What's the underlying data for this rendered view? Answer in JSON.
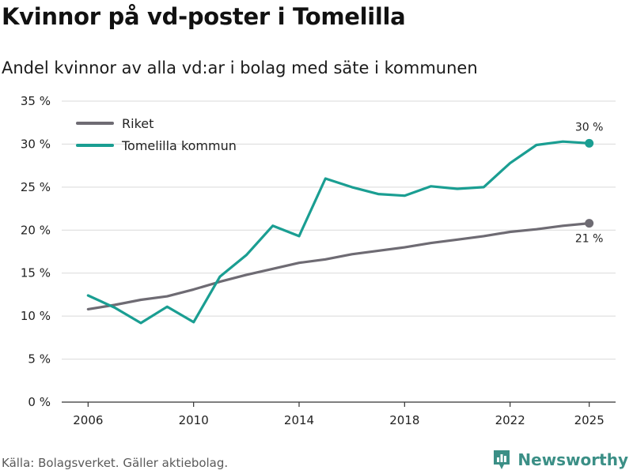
{
  "header": {
    "title": "Kvinnor på vd-poster i Tomelilla",
    "subtitle": "Andel kvinnor av alla vd:ar i bolag med säte i kommunen"
  },
  "footer": {
    "source": "Källa: Bolagsverket. Gäller aktiebolag.",
    "brand": "Newsworthy",
    "brand_icon": "newsworthy-logo-icon"
  },
  "colors": {
    "riket": "#6e6b73",
    "tomelilla": "#1a9e92",
    "grid": "#d9d9d9",
    "axis": "#333333"
  },
  "chart_data": {
    "type": "line",
    "title": "Kvinnor på vd-poster i Tomelilla",
    "subtitle": "Andel kvinnor av alla vd:ar i bolag med säte i kommunen",
    "xlabel": "",
    "ylabel": "",
    "xlim": [
      2005,
      2026
    ],
    "ylim": [
      0,
      35
    ],
    "grid": true,
    "legend_position": "top-left",
    "x_ticks": [
      2006,
      2010,
      2014,
      2018,
      2022,
      2025
    ],
    "y_ticks": [
      0,
      5,
      10,
      15,
      20,
      25,
      30,
      35
    ],
    "y_tick_labels": [
      "0 %",
      "5 %",
      "10 %",
      "15 %",
      "20 %",
      "25 %",
      "30 %",
      "35 %"
    ],
    "x": [
      2006,
      2007,
      2008,
      2009,
      2010,
      2011,
      2012,
      2013,
      2014,
      2015,
      2016,
      2017,
      2018,
      2019,
      2020,
      2021,
      2022,
      2023,
      2024,
      2025
    ],
    "series": [
      {
        "name": "Riket",
        "color_key": "riket",
        "values": [
          10.8,
          11.3,
          11.9,
          12.3,
          13.1,
          14.0,
          14.8,
          15.5,
          16.2,
          16.6,
          17.2,
          17.6,
          18.0,
          18.5,
          18.9,
          19.3,
          19.8,
          20.1,
          20.5,
          20.8
        ],
        "end_label": "21 %"
      },
      {
        "name": "Tomelilla kommun",
        "color_key": "tomelilla",
        "values": [
          12.4,
          11.0,
          9.2,
          11.1,
          9.3,
          14.6,
          17.1,
          20.5,
          19.3,
          26.0,
          25.0,
          24.2,
          24.0,
          25.1,
          24.8,
          25.0,
          27.8,
          29.9,
          30.3,
          30.1
        ],
        "end_label": "30 %"
      }
    ]
  }
}
